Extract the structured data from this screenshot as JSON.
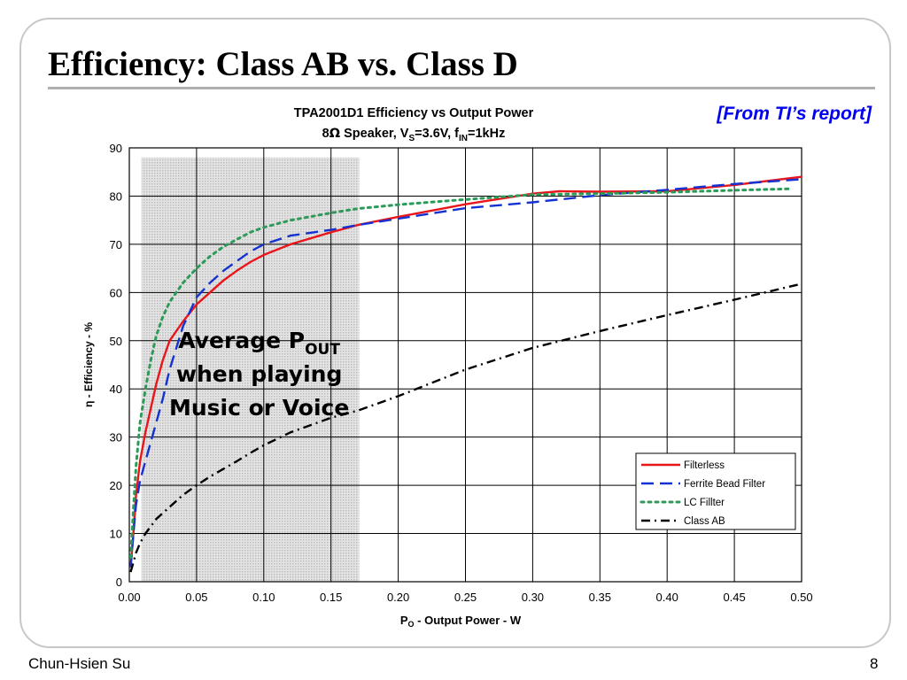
{
  "slide": {
    "title": "Efficiency: Class AB vs. Class D",
    "source_note": "[From TI’s report]",
    "author": "Chun-Hsien Su",
    "page_number": "8"
  },
  "chart_data": {
    "type": "line",
    "title": "TPA2001D1 Efficiency vs Output Power",
    "subtitle": {
      "part1": "8",
      "ohm": "Ω",
      "part2": " Speaker, V",
      "sub1": "S",
      "part3": "=3.6V, f",
      "sub2": "IN",
      "part4": "=1kHz"
    },
    "xlabel": {
      "main": "P",
      "sub": "O",
      "rest": " - Output Power - W"
    },
    "ylabel": "η - Efficiency - %",
    "xlim": [
      0,
      0.5
    ],
    "ylim": [
      0,
      90
    ],
    "grid": true,
    "x_ticks": [
      "0.00",
      "0.05",
      "0.10",
      "0.15",
      "0.20",
      "0.25",
      "0.30",
      "0.35",
      "0.40",
      "0.45",
      "0.50"
    ],
    "y_ticks": [
      "0",
      "10",
      "20",
      "30",
      "40",
      "50",
      "60",
      "70",
      "80",
      "90"
    ],
    "legend_position": "bottom-right",
    "shaded_region": {
      "x_range": [
        0.009,
        0.171
      ],
      "y_range": [
        0,
        88
      ],
      "label": {
        "line1_main": "Average P",
        "line1_sub": "OUT",
        "line2": "when playing",
        "line3": "Music or Voice"
      }
    },
    "series": [
      {
        "name": "Filterless",
        "color": "#e8151b",
        "dash": "solid",
        "points": [
          [
            0.001,
            3
          ],
          [
            0.003,
            10
          ],
          [
            0.005,
            18
          ],
          [
            0.008,
            25
          ],
          [
            0.012,
            31
          ],
          [
            0.016,
            36
          ],
          [
            0.02,
            41
          ],
          [
            0.025,
            46
          ],
          [
            0.03,
            50
          ],
          [
            0.04,
            54
          ],
          [
            0.05,
            57.5
          ],
          [
            0.06,
            60
          ],
          [
            0.07,
            62.5
          ],
          [
            0.08,
            64.5
          ],
          [
            0.09,
            66.3
          ],
          [
            0.1,
            67.8
          ],
          [
            0.12,
            70
          ],
          [
            0.15,
            72.5
          ],
          [
            0.17,
            74
          ],
          [
            0.2,
            75.7
          ],
          [
            0.25,
            78.3
          ],
          [
            0.3,
            80.5
          ],
          [
            0.32,
            81
          ],
          [
            0.35,
            80.9
          ],
          [
            0.4,
            81
          ],
          [
            0.45,
            82.3
          ],
          [
            0.5,
            84
          ]
        ]
      },
      {
        "name": "Ferrite Bead Filter",
        "color": "#1432d2",
        "dash": "long-dash",
        "points": [
          [
            0.001,
            3
          ],
          [
            0.003,
            10
          ],
          [
            0.005,
            16
          ],
          [
            0.008,
            21
          ],
          [
            0.012,
            25
          ],
          [
            0.016,
            29
          ],
          [
            0.02,
            33
          ],
          [
            0.025,
            38
          ],
          [
            0.03,
            44
          ],
          [
            0.04,
            53
          ],
          [
            0.05,
            59
          ],
          [
            0.06,
            62
          ],
          [
            0.07,
            64.5
          ],
          [
            0.08,
            66.5
          ],
          [
            0.09,
            68.5
          ],
          [
            0.1,
            70
          ],
          [
            0.12,
            71.8
          ],
          [
            0.15,
            73
          ],
          [
            0.17,
            74
          ],
          [
            0.2,
            75.3
          ],
          [
            0.25,
            77.5
          ],
          [
            0.3,
            78.7
          ],
          [
            0.35,
            80.2
          ],
          [
            0.4,
            81.3
          ],
          [
            0.45,
            82.5
          ],
          [
            0.5,
            83.5
          ]
        ]
      },
      {
        "name": "LC Fillter",
        "color": "#2e9a5a",
        "dash": "dotted",
        "points": [
          [
            0.001,
            5
          ],
          [
            0.003,
            15
          ],
          [
            0.005,
            24
          ],
          [
            0.008,
            33
          ],
          [
            0.012,
            40
          ],
          [
            0.016,
            46
          ],
          [
            0.02,
            51
          ],
          [
            0.025,
            55
          ],
          [
            0.03,
            58
          ],
          [
            0.04,
            62
          ],
          [
            0.05,
            65
          ],
          [
            0.06,
            67.5
          ],
          [
            0.07,
            69.5
          ],
          [
            0.08,
            71
          ],
          [
            0.09,
            72.5
          ],
          [
            0.1,
            73.5
          ],
          [
            0.12,
            75
          ],
          [
            0.15,
            76.5
          ],
          [
            0.17,
            77.4
          ],
          [
            0.2,
            78.2
          ],
          [
            0.25,
            79.3
          ],
          [
            0.3,
            80.3
          ],
          [
            0.35,
            80.5
          ],
          [
            0.4,
            80.8
          ],
          [
            0.45,
            81.2
          ],
          [
            0.49,
            81.5
          ]
        ]
      },
      {
        "name": "Class AB",
        "color": "#000000",
        "dash": "dash-dot",
        "points": [
          [
            0.001,
            2
          ],
          [
            0.003,
            4
          ],
          [
            0.005,
            6
          ],
          [
            0.008,
            8
          ],
          [
            0.012,
            10
          ],
          [
            0.016,
            11.5
          ],
          [
            0.02,
            13
          ],
          [
            0.03,
            15.5
          ],
          [
            0.04,
            18
          ],
          [
            0.05,
            20
          ],
          [
            0.06,
            21.8
          ],
          [
            0.07,
            23.4
          ],
          [
            0.08,
            25
          ],
          [
            0.09,
            26.7
          ],
          [
            0.1,
            28.3
          ],
          [
            0.12,
            31
          ],
          [
            0.15,
            34
          ],
          [
            0.17,
            35.5
          ],
          [
            0.2,
            38.5
          ],
          [
            0.25,
            44
          ],
          [
            0.3,
            48.5
          ],
          [
            0.35,
            52
          ],
          [
            0.4,
            55.3
          ],
          [
            0.45,
            58.5
          ],
          [
            0.5,
            61.8
          ]
        ]
      }
    ]
  }
}
